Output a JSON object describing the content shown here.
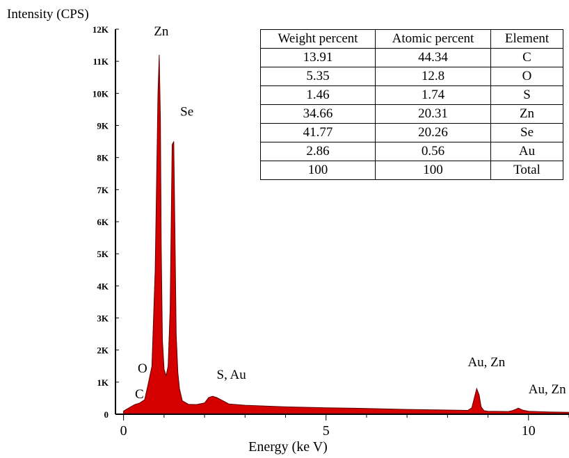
{
  "chart_data": {
    "type": "area",
    "title": "",
    "xlabel": "Energy (ke V)",
    "ylabel": "Intensity (CPS)",
    "xlim": [
      -0.2,
      11.0
    ],
    "ylim": [
      0,
      12000
    ],
    "x_ticks": [
      0,
      5,
      10
    ],
    "x_tick_labels": [
      "0",
      "5",
      "10"
    ],
    "y_ticks": [
      0,
      1000,
      2000,
      3000,
      4000,
      5000,
      6000,
      7000,
      8000,
      9000,
      10000,
      11000,
      12000
    ],
    "y_tick_labels": [
      "0",
      "1K",
      "2K",
      "3K",
      "4K",
      "5K",
      "6K",
      "7K",
      "8K",
      "9K",
      "10K",
      "11K",
      "12K"
    ],
    "fill_color": "#d40000",
    "series": [
      {
        "x": [
          0.0,
          0.2,
          0.28,
          0.4,
          0.52,
          0.6,
          0.7,
          0.78,
          0.85,
          0.88,
          0.91,
          0.93,
          0.96,
          1.0,
          1.05,
          1.1,
          1.15,
          1.2,
          1.24,
          1.27,
          1.3,
          1.34,
          1.38,
          1.45,
          1.6,
          1.8,
          2.0,
          2.1,
          2.2,
          2.3,
          2.45,
          2.6,
          3.0,
          4.0,
          5.0,
          6.0,
          7.0,
          8.0,
          8.5,
          8.6,
          8.65,
          8.72,
          8.78,
          8.83,
          8.9,
          9.0,
          9.5,
          9.6,
          9.7,
          9.75,
          9.85,
          10.0,
          10.5,
          11.0
        ],
        "y": [
          100,
          250,
          300,
          350,
          450,
          900,
          1500,
          4500,
          10000,
          11200,
          9200,
          5200,
          2300,
          1400,
          1200,
          1500,
          3300,
          8400,
          8500,
          5500,
          2500,
          1300,
          800,
          420,
          310,
          300,
          350,
          520,
          560,
          520,
          420,
          320,
          280,
          230,
          200,
          180,
          150,
          130,
          120,
          200,
          450,
          800,
          600,
          230,
          110,
          90,
          85,
          110,
          160,
          190,
          130,
          90,
          70,
          60
        ]
      }
    ],
    "peak_labels": [
      {
        "label": "Zn",
        "x": 0.75,
        "y": 11800
      },
      {
        "label": "Se",
        "x": 1.4,
        "y": 9300
      },
      {
        "label": "O",
        "x": 0.35,
        "y": 1300
      },
      {
        "label": "C",
        "x": 0.28,
        "y": 500
      },
      {
        "label": "S, Au",
        "x": 2.3,
        "y": 1100
      },
      {
        "label": "Au, Zn",
        "x": 8.5,
        "y": 1500
      },
      {
        "label": "Au, Zn",
        "x": 10.0,
        "y": 650
      }
    ]
  },
  "table": {
    "headers": [
      "Weight percent",
      "Atomic percent",
      "Element"
    ],
    "rows": [
      [
        "13.91",
        "44.34",
        "C"
      ],
      [
        "5.35",
        "12.8",
        "O"
      ],
      [
        "1.46",
        "1.74",
        "S"
      ],
      [
        "34.66",
        "20.31",
        "Zn"
      ],
      [
        "41.77",
        "20.26",
        "Se"
      ],
      [
        "2.86",
        "0.56",
        "Au"
      ],
      [
        "100",
        "100",
        "Total"
      ]
    ]
  }
}
